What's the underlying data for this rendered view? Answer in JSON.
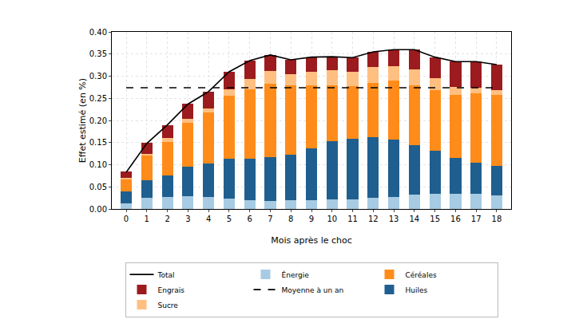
{
  "chart_data": {
    "type": "bar",
    "stacked": true,
    "x_label": "Mois après le choc",
    "y_label": "Effet estimé (en %)",
    "categories": [
      "0",
      "1",
      "2",
      "3",
      "4",
      "5",
      "6",
      "7",
      "8",
      "9",
      "10",
      "11",
      "12",
      "13",
      "14",
      "15",
      "16",
      "17",
      "18"
    ],
    "ylim": [
      0,
      0.4
    ],
    "yticks": [
      {
        "value": 0,
        "label": "0.00"
      },
      {
        "value": 0.05,
        "label": "0.05"
      },
      {
        "value": 0.1,
        "label": "0.10"
      },
      {
        "value": 0.15,
        "label": "0.15"
      },
      {
        "value": 0.2,
        "label": "0.20"
      },
      {
        "value": 0.25,
        "label": "0.25"
      },
      {
        "value": 0.3,
        "label": "0.30"
      },
      {
        "value": 0.35,
        "label": "0.35"
      },
      {
        "value": 0.4,
        "label": "0.40"
      }
    ],
    "grid": true,
    "legend": "bottom",
    "series": [
      {
        "name": "Énergie",
        "type": "bar",
        "color": "#a6cbe3",
        "values": [
          0.013,
          0.025,
          0.027,
          0.028,
          0.027,
          0.023,
          0.02,
          0.018,
          0.02,
          0.02,
          0.021,
          0.022,
          0.025,
          0.027,
          0.033,
          0.035,
          0.035,
          0.035,
          0.03
        ]
      },
      {
        "name": "Huiles",
        "type": "bar",
        "color": "#1f5f8f",
        "values": [
          0.027,
          0.04,
          0.048,
          0.067,
          0.076,
          0.09,
          0.093,
          0.1,
          0.102,
          0.117,
          0.132,
          0.136,
          0.138,
          0.129,
          0.112,
          0.097,
          0.08,
          0.069,
          0.068
        ]
      },
      {
        "name": "Céréales",
        "type": "bar",
        "color": "#ff8c1a",
        "values": [
          0.028,
          0.055,
          0.077,
          0.1,
          0.115,
          0.142,
          0.157,
          0.164,
          0.158,
          0.143,
          0.127,
          0.119,
          0.122,
          0.134,
          0.135,
          0.136,
          0.143,
          0.158,
          0.16
        ]
      },
      {
        "name": "Sucre",
        "type": "bar",
        "color": "#ffbf80",
        "values": [
          0.003,
          0.005,
          0.008,
          0.008,
          0.009,
          0.015,
          0.023,
          0.03,
          0.025,
          0.03,
          0.033,
          0.033,
          0.035,
          0.033,
          0.035,
          0.027,
          0.018,
          0.011,
          0.01
        ]
      },
      {
        "name": "Engrais",
        "type": "bar",
        "color": "#9b1b1e",
        "values": [
          0.013,
          0.025,
          0.03,
          0.034,
          0.038,
          0.04,
          0.042,
          0.036,
          0.032,
          0.033,
          0.031,
          0.032,
          0.035,
          0.037,
          0.045,
          0.048,
          0.057,
          0.06,
          0.058
        ]
      },
      {
        "name": "Total",
        "type": "line",
        "line_style": "solid",
        "color": "#000000",
        "values": [
          0.083,
          0.148,
          0.19,
          0.237,
          0.265,
          0.31,
          0.335,
          0.348,
          0.337,
          0.343,
          0.344,
          0.342,
          0.355,
          0.36,
          0.36,
          0.343,
          0.333,
          0.333,
          0.326
        ]
      },
      {
        "name": "Moyenne à un an",
        "type": "line",
        "line_style": "dash",
        "color": "#000000",
        "values": [
          0.274,
          0.274,
          0.274,
          0.274,
          0.274,
          0.274,
          0.274,
          0.274,
          0.274,
          0.274,
          0.274,
          0.274,
          0.274,
          0.274,
          0.274,
          0.274,
          0.274,
          0.274,
          0.274
        ]
      }
    ]
  }
}
